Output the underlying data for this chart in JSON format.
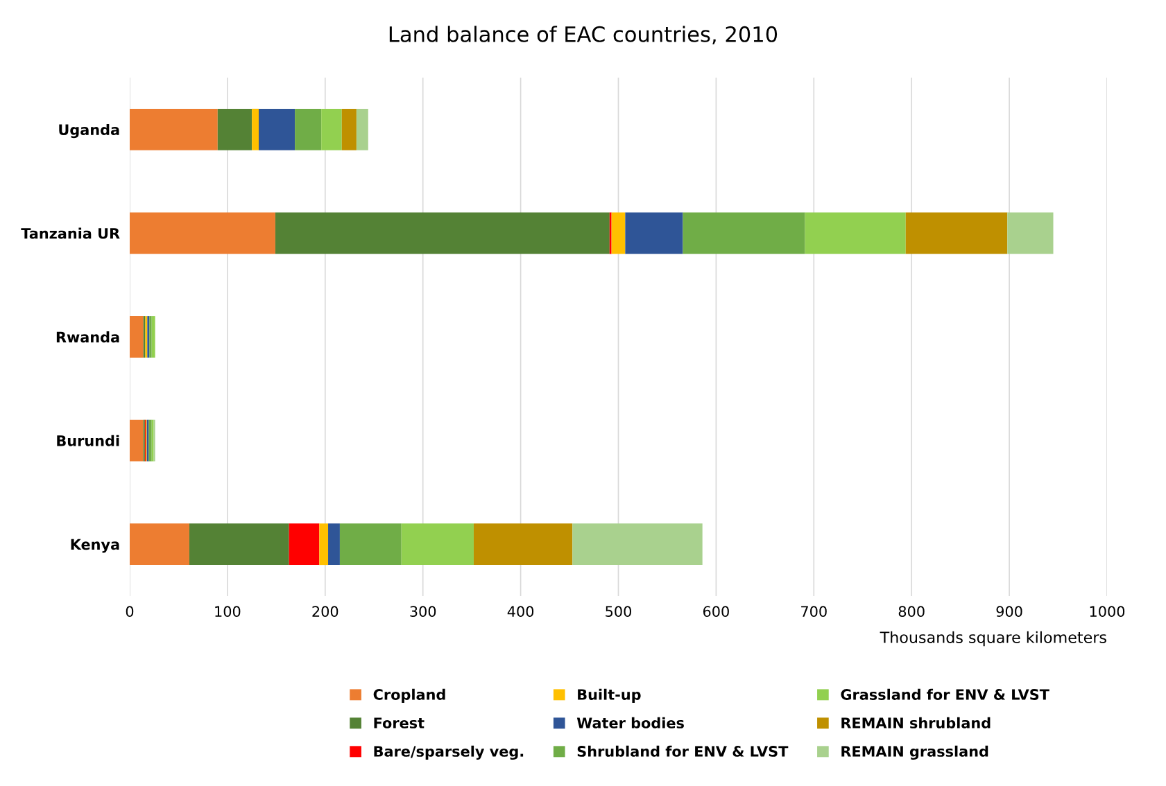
{
  "chart_data": {
    "type": "bar",
    "orientation": "horizontal",
    "stacked": true,
    "title": "Land balance of EAC countries, 2010",
    "xlabel": "Thousands square kilometers",
    "categories": [
      "Uganda",
      "Tanzania UR",
      "Rwanda",
      "Burundi",
      "Kenya"
    ],
    "series": [
      {
        "name": "Cropland",
        "color": "#ed7d31",
        "values": [
          90,
          149,
          14,
          14,
          61
        ]
      },
      {
        "name": "Forest",
        "color": "#548235",
        "values": [
          35,
          342,
          2,
          1.5,
          102
        ]
      },
      {
        "name": "Bare/sparsely veg.",
        "color": "#ff0000",
        "values": [
          0,
          2,
          0,
          1,
          31
        ]
      },
      {
        "name": "Built-up",
        "color": "#ffc000",
        "values": [
          7,
          14,
          2,
          1,
          9
        ]
      },
      {
        "name": "Water bodies",
        "color": "#2f5597",
        "values": [
          37,
          59,
          2,
          2,
          12
        ]
      },
      {
        "name": "Shrubland for ENV & LVST",
        "color": "#70ad47",
        "values": [
          27,
          125,
          2.5,
          3,
          63
        ]
      },
      {
        "name": "Grassland for ENV & LVST",
        "color": "#92d050",
        "values": [
          21,
          103,
          3.5,
          2,
          74
        ]
      },
      {
        "name": "REMAIN shrubland",
        "color": "#bf9000",
        "values": [
          15,
          104,
          0,
          0,
          101
        ]
      },
      {
        "name": "REMAIN grassland",
        "color": "#a9d18e",
        "values": [
          12,
          47,
          0,
          1.5,
          133
        ]
      }
    ],
    "xlim": [
      0,
      1000
    ],
    "xticks": [
      0,
      100,
      200,
      300,
      400,
      500,
      600,
      700,
      800,
      900,
      1000
    ],
    "grid": "x",
    "legend": "bottom"
  }
}
